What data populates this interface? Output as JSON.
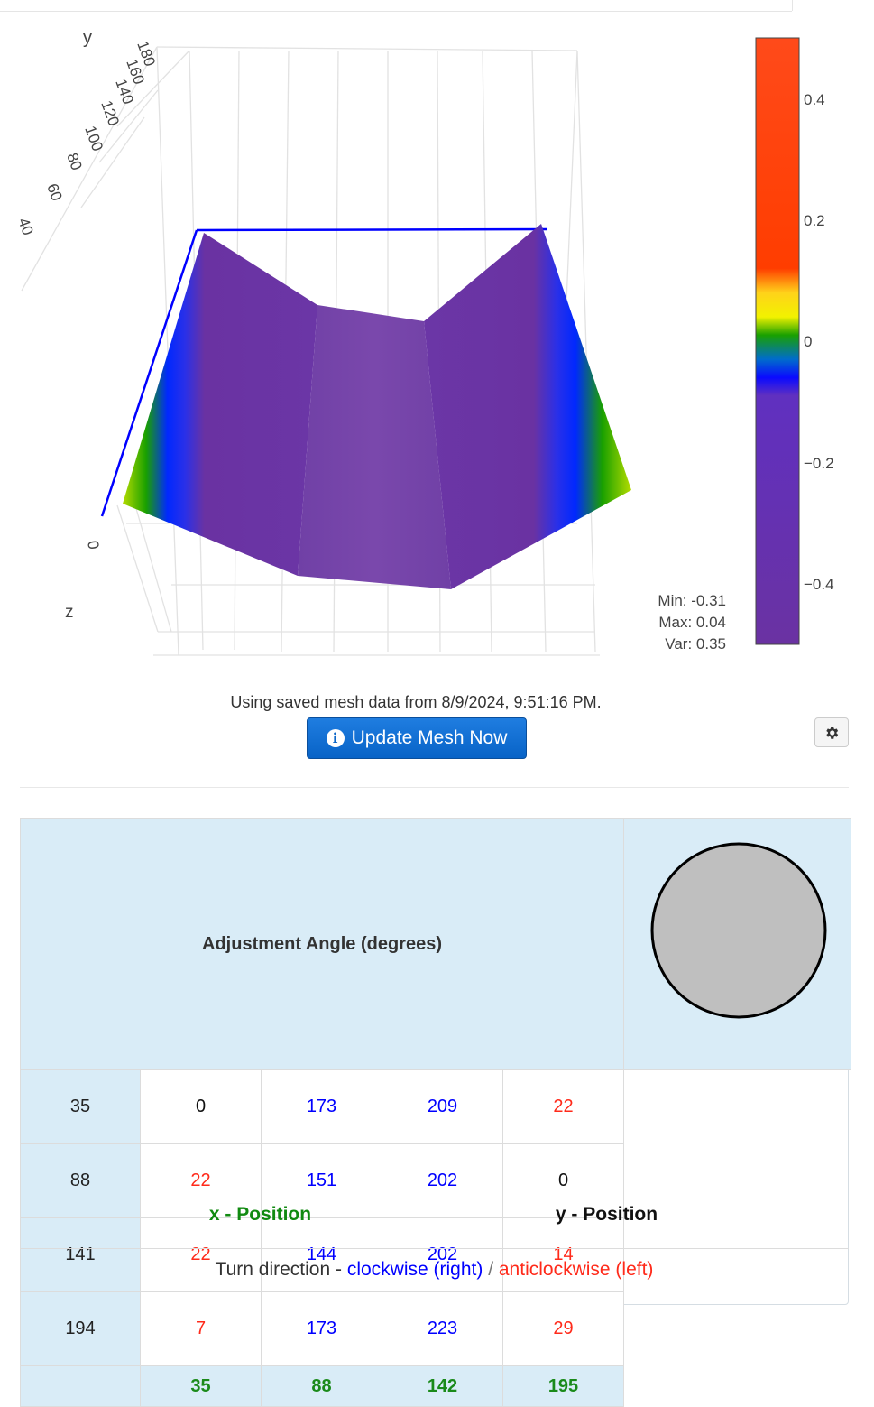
{
  "plot": {
    "axis_y_label": "y",
    "axis_z_label": "z",
    "y_ticks": [
      "180",
      "160",
      "140",
      "120",
      "100",
      "80",
      "60",
      "40"
    ],
    "z_tick": "0",
    "colorbar_ticks": [
      "0.4",
      "0.2",
      "0",
      "−0.2",
      "−0.4"
    ],
    "stats": {
      "min": "Min: -0.31",
      "max": "Max: 0.04",
      "var": "Var: 0.35"
    }
  },
  "status": {
    "saved_text": "Using saved mesh data from 8/9/2024, 9:51:16 PM."
  },
  "buttons": {
    "update_label": "Update Mesh Now",
    "info_icon": "i"
  },
  "table": {
    "title": "Adjustment Angle (degrees)",
    "rows": [
      {
        "y": "35",
        "cells": [
          {
            "v": "0",
            "c": "black"
          },
          {
            "v": "173",
            "c": "blue"
          },
          {
            "v": "209",
            "c": "blue"
          },
          {
            "v": "22",
            "c": "red"
          }
        ]
      },
      {
        "y": "88",
        "cells": [
          {
            "v": "22",
            "c": "red"
          },
          {
            "v": "151",
            "c": "blue"
          },
          {
            "v": "202",
            "c": "blue"
          },
          {
            "v": "0",
            "c": "black"
          }
        ]
      },
      {
        "y": "141",
        "cells": [
          {
            "v": "22",
            "c": "red"
          },
          {
            "v": "144",
            "c": "blue"
          },
          {
            "v": "202",
            "c": "blue"
          },
          {
            "v": "14",
            "c": "red"
          }
        ]
      },
      {
        "y": "194",
        "cells": [
          {
            "v": "7",
            "c": "red"
          },
          {
            "v": "173",
            "c": "blue"
          },
          {
            "v": "223",
            "c": "blue"
          },
          {
            "v": "29",
            "c": "red"
          }
        ]
      }
    ],
    "x_positions": [
      "35",
      "88",
      "142",
      "195"
    ],
    "x_label": "x - Position",
    "y_label": "y - Position"
  },
  "legend": {
    "prefix": "Turn direction - ",
    "clockwise": "clockwise (right)",
    "slash": " / ",
    "anticlockwise": "anticlockwise (left)"
  },
  "colors": {
    "blue": "#0000ff",
    "red": "#ff2a1a",
    "green": "#118a11",
    "accent": "#0b66c8"
  }
}
